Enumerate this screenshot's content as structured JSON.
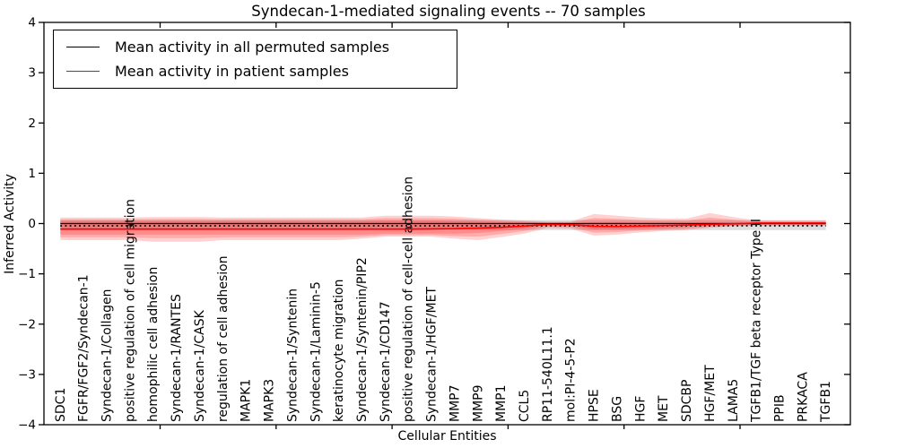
{
  "figure": {
    "title": "Syndecan-1-mediated signaling events -- 70 samples",
    "xlabel": "Cellular Entities",
    "ylabel": "Inferred Activity"
  },
  "legend": {
    "position": "upper-left",
    "entries": [
      {
        "label": "Mean activity in all permuted samples",
        "color": "#000000"
      },
      {
        "label": "Mean activity in patient samples",
        "color": "#ff0000"
      }
    ]
  },
  "chart_data": {
    "type": "line",
    "title": "Syndecan-1-mediated signaling events -- 70 samples",
    "xlabel": "Cellular Entities",
    "ylabel": "Inferred Activity",
    "ylim": [
      -4,
      4
    ],
    "grid": false,
    "ytick_labels": [
      "4",
      "3",
      "2",
      "1",
      "0",
      "−1",
      "−2",
      "−3",
      "−4"
    ],
    "ytick_values": [
      4,
      3,
      2,
      1,
      0,
      -1,
      -2,
      -3,
      -4
    ],
    "xtick_major_entity_positions": [
      4.3,
      9.3,
      14.3,
      19.3,
      24.3,
      29.3
    ],
    "categories": [
      "SDC1",
      "FGFR/FGF2/Syndecan-1",
      "Syndecan-1/Collagen",
      "positive regulation of cell migration",
      "homophilic cell adhesion",
      "Syndecan-1/RANTES",
      "Syndecan-1/CASK",
      "regulation of cell adhesion",
      "MAPK1",
      "MAPK3",
      "Syndecan-1/Syntenin",
      "Syndecan-1/Laminin-5",
      "keratinocyte migration",
      "Syndecan-1/Syntenin/PIP2",
      "Syndecan-1/CD147",
      "positive regulation of cell-cell adhesion",
      "Syndecan-1/HGF/MET",
      "MMP7",
      "MMP9",
      "MMP1",
      "CCL5",
      "RP11-540L11.1",
      "mol:PI-4-5-P2",
      "HPSE",
      "BSG",
      "HGF",
      "MET",
      "SDCBP",
      "HGF/MET",
      "LAMA5",
      "TGFB1/TGF beta receptor Type II",
      "PPIB",
      "PRKACA",
      "TGFB1"
    ],
    "series": [
      {
        "name": "Mean activity in all permuted samples",
        "color": "#000000",
        "values": [
          0,
          0,
          0,
          0,
          0,
          0,
          0,
          0,
          0,
          0,
          0,
          0,
          0,
          0,
          0,
          0,
          0,
          0,
          0,
          0,
          0,
          0,
          0,
          0,
          0,
          0,
          0,
          0,
          0,
          0,
          0,
          0,
          0,
          0
        ]
      },
      {
        "name": "Mean activity in patient samples",
        "color": "#ff0000",
        "values": [
          -0.11,
          -0.11,
          -0.11,
          -0.11,
          -0.11,
          -0.11,
          -0.11,
          -0.11,
          -0.11,
          -0.11,
          -0.11,
          -0.11,
          -0.11,
          -0.11,
          -0.11,
          -0.11,
          -0.105,
          -0.1,
          -0.09,
          -0.075,
          -0.05,
          -0.015,
          -0.02,
          -0.055,
          -0.06,
          -0.05,
          -0.04,
          -0.03,
          -0.015,
          -0.005,
          0.01,
          0.01,
          0.01,
          0.01
        ]
      }
    ],
    "bands": {
      "permuted_band": {
        "color": "rgba(0,0,0,0.13)",
        "top": 0.07,
        "bottom": -0.13
      },
      "patient_band_outer": {
        "color": "rgba(255,0,0,0.18)",
        "top": [
          0.12,
          0.12,
          0.12,
          0.12,
          0.13,
          0.13,
          0.13,
          0.12,
          0.12,
          0.12,
          0.12,
          0.12,
          0.12,
          0.12,
          0.155,
          0.155,
          0.155,
          0.14,
          0.11,
          0.08,
          0.06,
          0.04,
          0.04,
          0.19,
          0.155,
          0.12,
          0.1,
          0.1,
          0.21,
          0.13,
          0.065,
          0.06,
          0.06,
          0.06
        ],
        "bottom": [
          -0.33,
          -0.33,
          -0.33,
          -0.33,
          -0.36,
          -0.36,
          -0.36,
          -0.33,
          -0.33,
          -0.33,
          -0.33,
          -0.33,
          -0.33,
          -0.3,
          -0.26,
          -0.26,
          -0.26,
          -0.3,
          -0.33,
          -0.27,
          -0.2,
          -0.09,
          -0.1,
          -0.24,
          -0.22,
          -0.175,
          -0.15,
          -0.13,
          -0.085,
          -0.05,
          -0.04,
          -0.04,
          -0.04,
          -0.04
        ]
      },
      "patient_band_inner": {
        "color": "rgba(255,0,0,0.18)",
        "top": [
          0.05,
          0.05,
          0.05,
          0.05,
          0.05,
          0.05,
          0.05,
          0.05,
          0.05,
          0.05,
          0.05,
          0.05,
          0.05,
          0.05,
          0.06,
          0.06,
          0.06,
          0.05,
          0.04,
          0.03,
          0.02,
          0.01,
          0.01,
          0.03,
          0.03,
          0.02,
          0.02,
          0.02,
          0.03,
          0.02,
          0.015,
          0.015,
          0.015,
          0.015
        ],
        "bottom": [
          -0.22,
          -0.22,
          -0.22,
          -0.22,
          -0.22,
          -0.22,
          -0.22,
          -0.22,
          -0.22,
          -0.22,
          -0.22,
          -0.22,
          -0.22,
          -0.22,
          -0.2,
          -0.2,
          -0.2,
          -0.2,
          -0.19,
          -0.15,
          -0.1,
          -0.03,
          -0.04,
          -0.12,
          -0.12,
          -0.1,
          -0.09,
          -0.07,
          -0.04,
          -0.03,
          -0.025,
          -0.025,
          -0.025,
          -0.025
        ]
      }
    },
    "reference_line": {
      "y": -0.045,
      "style": "dotted",
      "color": "#000000"
    },
    "legend_position": "upper-left"
  }
}
